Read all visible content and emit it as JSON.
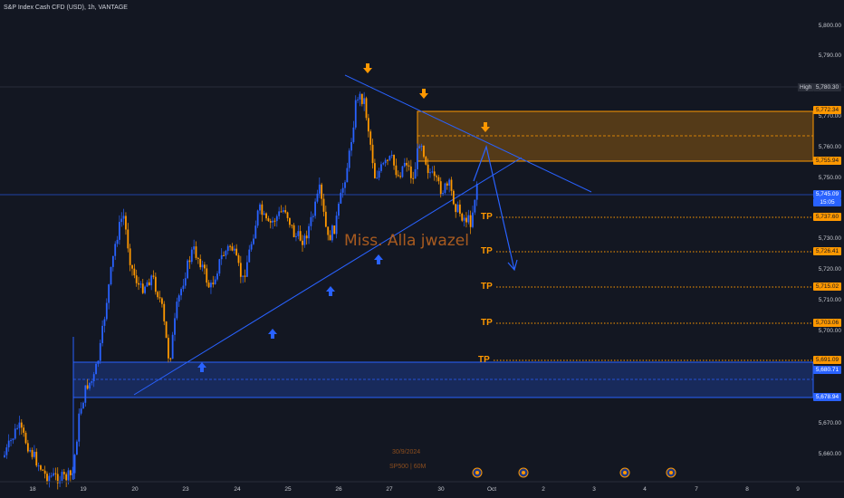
{
  "chart": {
    "title": "S&P Index Cash CFD (USD), 1h, VANTAGE",
    "watermark": "Miss. Alla jwazel",
    "date_overlay": "30/9/2024",
    "symbol_overlay": "SP500 | 60M",
    "tp_label": "TP"
  },
  "price_axis": [
    "5,800.00",
    "5,790.00",
    "5,770.00",
    "5,760.00",
    "5,750.00",
    "5,730.00",
    "5,720.00",
    "5,710.00",
    "5,700.00",
    "5,670.00",
    "5,660.00"
  ],
  "price_tags": {
    "high_label": "High",
    "high_value": "5,780.30",
    "zone_top": "5,772.34",
    "zone_bottom": "5,755.94",
    "current": "5,745.09",
    "countdown": "15:05",
    "tp1": "5,737.60",
    "tp2": "5,726.41",
    "tp3": "5,715.02",
    "tp4": "5,703.06",
    "tp5": "5,691.09",
    "demand_mid": "5,680.71",
    "demand_bottom": "5,678.94"
  },
  "time_axis": [
    "18",
    "19",
    "20",
    "23",
    "24",
    "25",
    "26",
    "27",
    "30",
    "Oct",
    "2",
    "3",
    "4",
    "7",
    "8",
    "9"
  ],
  "chart_data": {
    "type": "candlestick",
    "title": "S&P Index Cash CFD (USD), 1h, VANTAGE",
    "ylim": [
      5655,
      5808
    ],
    "x_labels": [
      "18",
      "19",
      "20",
      "23",
      "24",
      "25",
      "26",
      "27",
      "30",
      "Oct",
      "2",
      "3",
      "4",
      "7",
      "8",
      "9"
    ],
    "levels": {
      "high": 5780.3,
      "supply_top": 5772.34,
      "supply_bottom": 5755.94,
      "current": 5745.09,
      "tp": [
        5737.6,
        5726.41,
        5715.02,
        5703.06,
        5691.09
      ],
      "demand_top": 5691.09,
      "demand_mid": 5680.71,
      "demand_bottom": 5678.94
    }
  },
  "colors": {
    "background": "#131722",
    "bull": "#2962ff",
    "bear": "#ff9800",
    "text": "#c4c7ce"
  }
}
